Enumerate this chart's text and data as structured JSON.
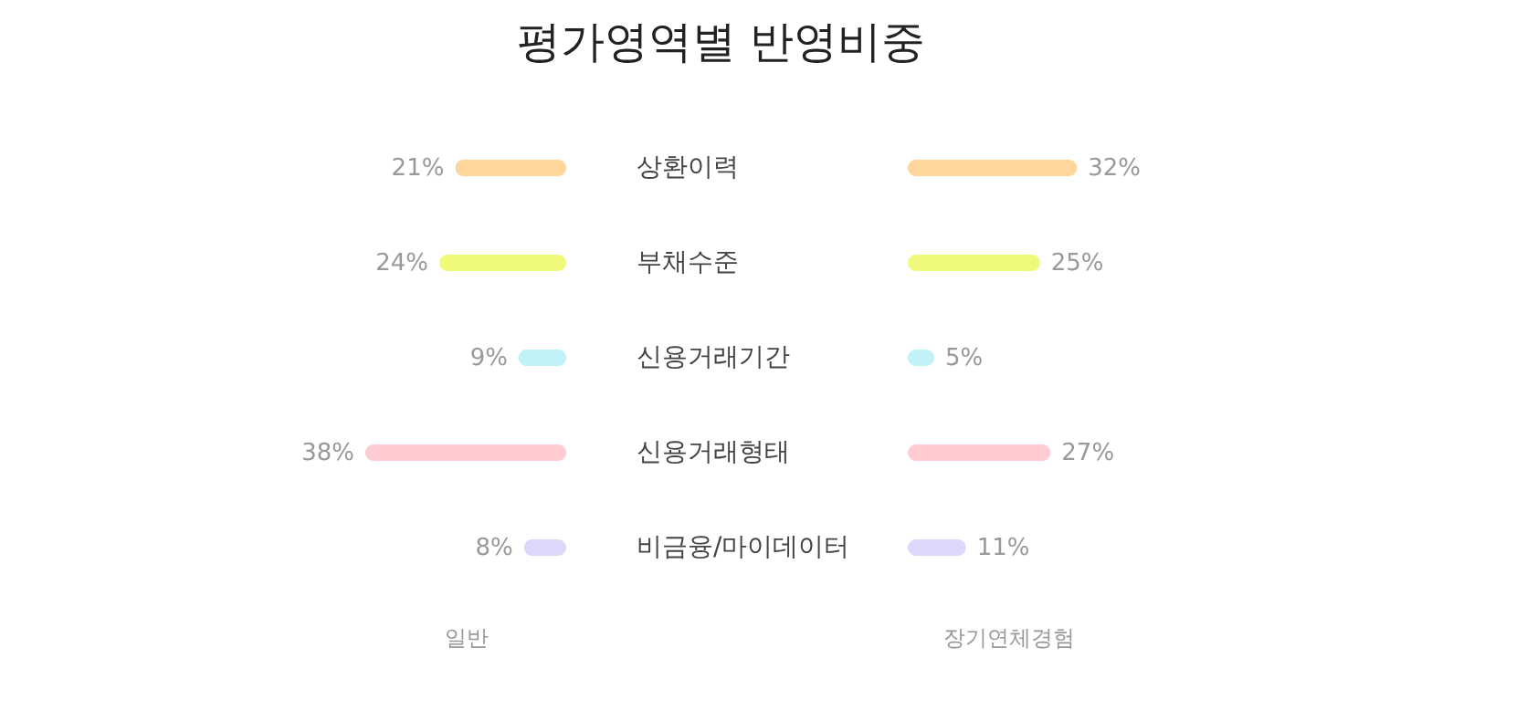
{
  "chart_data": [
    {
      "type": "bar",
      "orientation": "horizontal",
      "title": "평가영역별 반영비중",
      "xlabel": "일반",
      "categories": [
        "상환이력",
        "부채수준",
        "신용거래기간",
        "신용거래형태",
        "비금융/마이데이터"
      ],
      "values": [
        21,
        24,
        9,
        38,
        8
      ],
      "value_labels": [
        "21%",
        "24%",
        "9%",
        "38%",
        "8%"
      ],
      "colors": [
        "#ffd699",
        "#f0fa7a",
        "#c0f2f8",
        "#ffccd2",
        "#ddd8fb"
      ],
      "tick_labels": "y",
      "grid": false
    },
    {
      "type": "bar",
      "orientation": "horizontal",
      "xlabel": "장기연체경험",
      "categories": [
        null,
        null,
        null,
        null,
        null
      ],
      "values": [
        32,
        25,
        5,
        27,
        11
      ],
      "value_labels": [
        "32%",
        "25%",
        "5%",
        "27%",
        "11%"
      ],
      "colors": [
        "#ffd699",
        "#f0fa7a",
        "#c0f2f8",
        "#ffccd2",
        "#ddd8fb"
      ],
      "tick_labels": false,
      "grid": false
    }
  ]
}
